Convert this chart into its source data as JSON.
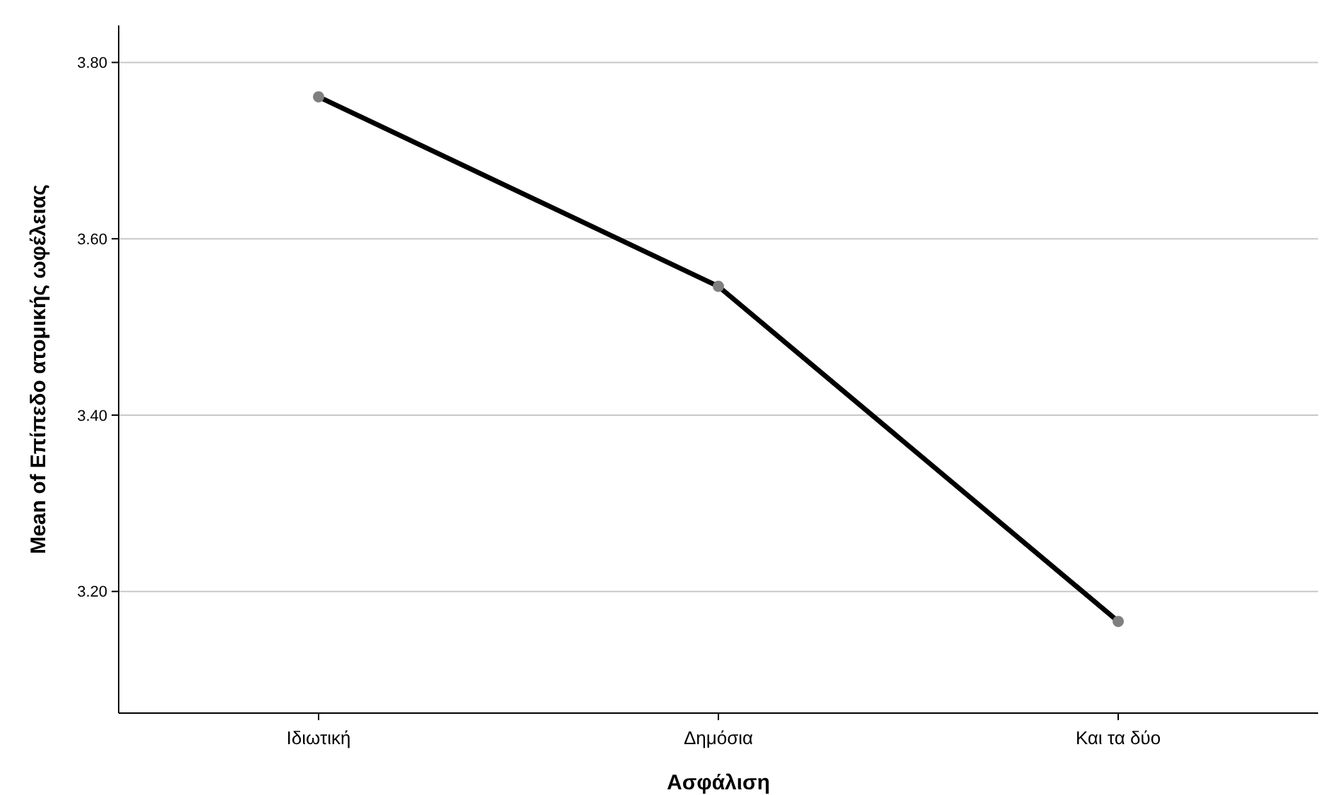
{
  "chart_data": {
    "type": "line",
    "xlabel": "Ασφάλιση",
    "ylabel": "Mean of Επίπεδο ατομικής ωφέλειας",
    "categories": [
      "Ιδιωτική",
      "Δημόσια",
      "Και τα δύο"
    ],
    "series": [
      {
        "color": "#000000",
        "values": [
          3.761,
          3.546,
          3.166
        ]
      }
    ],
    "ylim": [
      3.062,
      3.842
    ],
    "yticks": [
      {
        "value": 3.2,
        "label": "3.20"
      },
      {
        "value": 3.4,
        "label": "3.40"
      },
      {
        "value": 3.6,
        "label": "3.60"
      },
      {
        "value": 3.8,
        "label": "3.80"
      }
    ],
    "grid": "y",
    "marker": "circle",
    "line_style": "solid"
  }
}
